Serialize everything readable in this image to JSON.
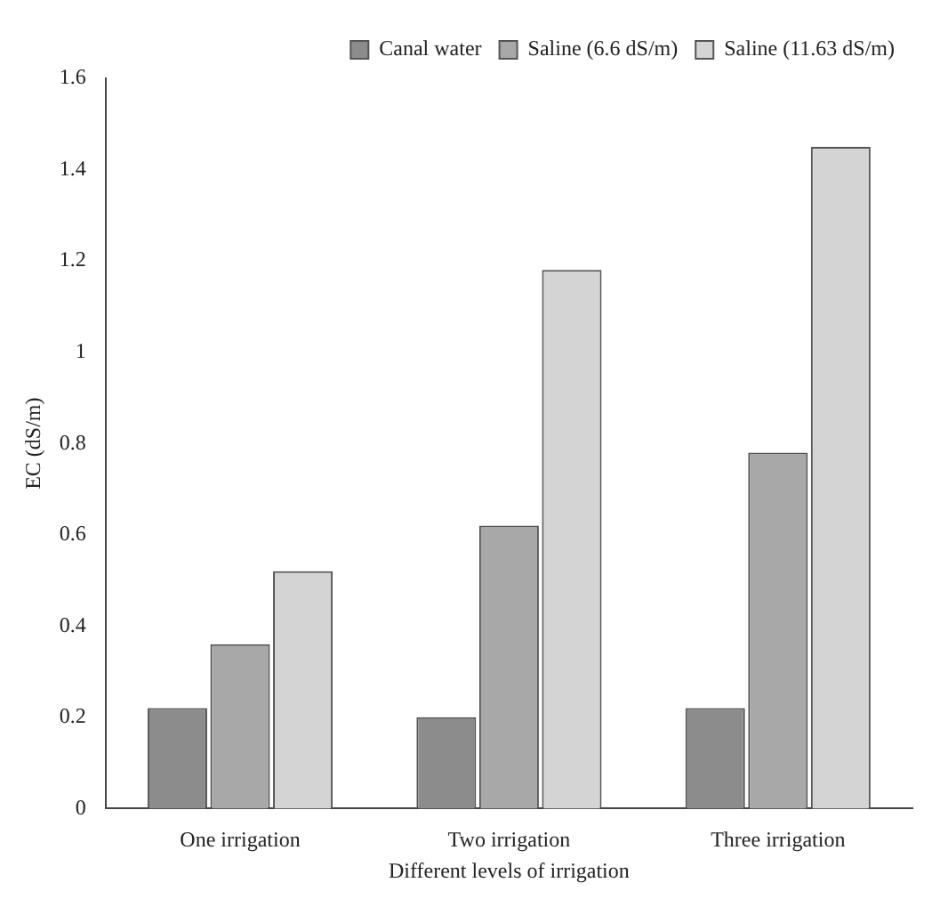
{
  "chart_data": {
    "type": "bar",
    "xlabel": "Different levels of irrigation",
    "ylabel": "EC (dS/m)",
    "categories": [
      "One irrigation",
      "Two irrigation",
      "Three irrigation"
    ],
    "series": [
      {
        "name": "Canal water",
        "color": "#8c8c8c",
        "values": [
          0.22,
          0.2,
          0.22
        ]
      },
      {
        "name": "Saline (6.6 dS/m)",
        "color": "#a8a8a8",
        "values": [
          0.36,
          0.62,
          0.78
        ]
      },
      {
        "name": "Saline (11.63 dS/m)",
        "color": "#d4d4d4",
        "values": [
          0.52,
          1.18,
          1.45
        ]
      }
    ],
    "ylim": [
      0,
      1.6
    ],
    "yticks": [
      0,
      0.2,
      0.4,
      0.6,
      0.8,
      1,
      1.2,
      1.4,
      1.6
    ],
    "grid": false,
    "legend": "top right"
  }
}
